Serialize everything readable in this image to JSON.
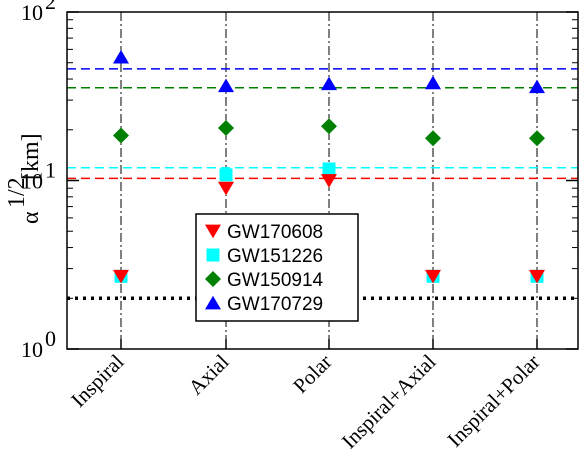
{
  "chart_data": {
    "type": "scatter",
    "y_scale": "log",
    "ylim": [
      1,
      100
    ],
    "ylabel_symbol": "α",
    "ylabel_exp": "1/2",
    "ylabel_unit": "[km]",
    "ytick_labels": [
      {
        "value": 1,
        "base": "10",
        "exp": "0"
      },
      {
        "value": 10,
        "base": "10",
        "exp": "1"
      },
      {
        "value": 100,
        "base": "10",
        "exp": "2"
      }
    ],
    "categories": [
      "Inspiral",
      "Axial",
      "Polar",
      "Inspiral+Axial",
      "Inspiral+Polar"
    ],
    "series": [
      {
        "name": "GW170608",
        "marker": "triangle-down",
        "color": "#ff0000",
        "values": [
          2.7,
          9.0,
          10.0,
          2.7,
          2.7
        ],
        "reference_line": 10.3
      },
      {
        "name": "GW151226",
        "marker": "square",
        "color": "#00ffff",
        "values": [
          2.7,
          10.8,
          11.7,
          2.7,
          2.7
        ],
        "reference_line": 11.9
      },
      {
        "name": "GW150914",
        "marker": "diamond",
        "color": "#008000",
        "values": [
          18.5,
          20.5,
          21.0,
          17.8,
          17.8
        ],
        "reference_line": 35.5
      },
      {
        "name": "GW170729",
        "marker": "triangle-up",
        "color": "#0000ff",
        "values": [
          54.0,
          36.5,
          37.5,
          38.0,
          36.0
        ],
        "reference_line": 46.0
      }
    ],
    "black_reference_line": 2.0,
    "legend_position": "lower-center"
  }
}
